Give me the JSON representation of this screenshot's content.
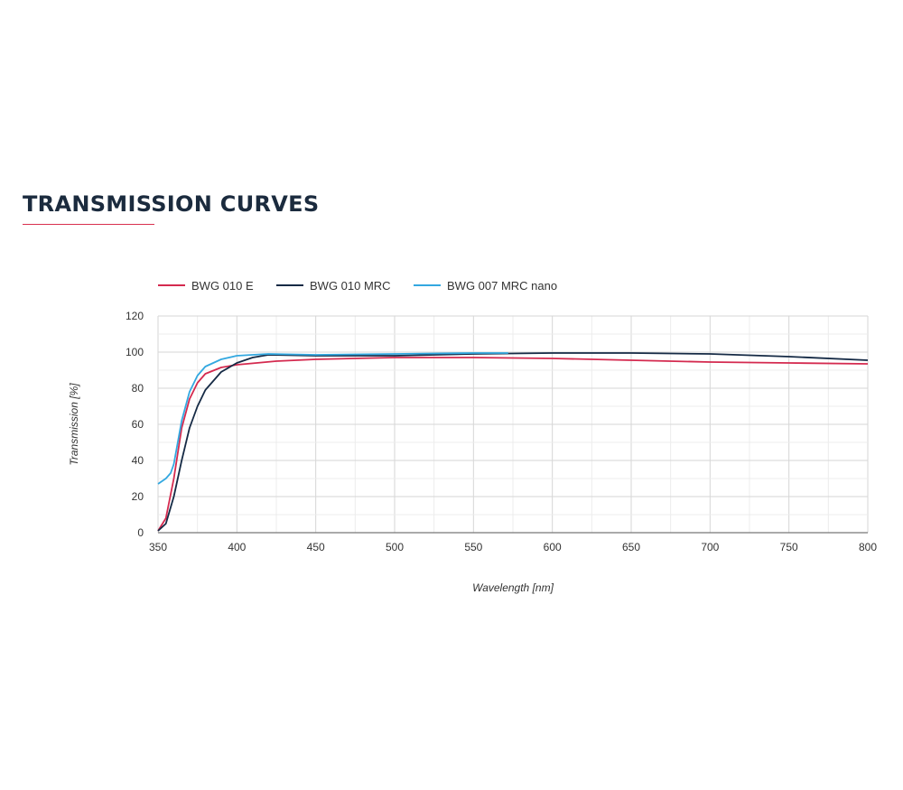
{
  "heading": "TRANSMISSION CURVES",
  "chart_data": {
    "type": "line",
    "xlabel": "Wavelength [nm]",
    "ylabel": "Transmission [%]",
    "xlim": [
      350,
      800
    ],
    "ylim": [
      0,
      120
    ],
    "xticks": [
      350,
      400,
      450,
      500,
      550,
      600,
      650,
      700,
      750,
      800
    ],
    "yticks": [
      0,
      20,
      40,
      60,
      80,
      100,
      120
    ],
    "grid": true,
    "legend": "top-left",
    "series": [
      {
        "name": "BWG 010 E",
        "color": "#d42a4f",
        "x": [
          350,
          355,
          360,
          365,
          370,
          375,
          380,
          390,
          400,
          425,
          450,
          500,
          550,
          600,
          650,
          700,
          750,
          800
        ],
        "y": [
          1,
          8,
          30,
          58,
          74,
          83,
          88,
          91.5,
          93,
          95,
          96,
          97,
          97,
          96.5,
          95.5,
          94.5,
          94,
          93.5
        ]
      },
      {
        "name": "BWG 010 MRC",
        "color": "#152a45",
        "x": [
          350,
          355,
          360,
          365,
          370,
          375,
          380,
          390,
          400,
          410,
          420,
          450,
          500,
          550,
          600,
          650,
          700,
          750,
          800
        ],
        "y": [
          1,
          5,
          20,
          40,
          58,
          70,
          79,
          89,
          94,
          97,
          98.5,
          98,
          98,
          99,
          99.5,
          99.5,
          99,
          97.5,
          95.5
        ]
      },
      {
        "name": "BWG 007 MRC nano",
        "color": "#33a8e0",
        "x": [
          350,
          355,
          358,
          360,
          365,
          370,
          375,
          380,
          390,
          400,
          420,
          450,
          500,
          550,
          572
        ],
        "y": [
          27,
          30,
          33,
          38,
          62,
          78,
          87,
          92,
          96,
          98,
          99,
          98.5,
          99,
          99.5,
          99.5
        ]
      }
    ]
  }
}
